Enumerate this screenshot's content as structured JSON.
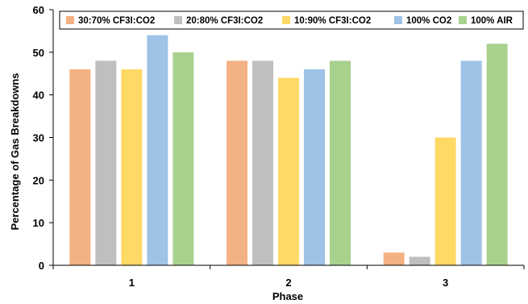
{
  "chart_data": {
    "type": "bar",
    "xlabel": "Phase",
    "ylabel": "Percentage of Gas Breakdowns",
    "categories": [
      "1",
      "2",
      "3"
    ],
    "ylim": [
      0,
      60
    ],
    "yticks": [
      0,
      10,
      20,
      30,
      40,
      50,
      60
    ],
    "grid": false,
    "legend_position": "top",
    "series": [
      {
        "name": "30:70% CF3I:CO2",
        "color": "#f4b183",
        "values": [
          46,
          48,
          3
        ]
      },
      {
        "name": "20:80% CF3I:CO2",
        "color": "#bfbfbf",
        "values": [
          48,
          48,
          2
        ]
      },
      {
        "name": "10:90% CF3I:CO2",
        "color": "#ffd966",
        "values": [
          46,
          44,
          30
        ]
      },
      {
        "name": "100% CO2",
        "color": "#9dc3e6",
        "values": [
          54,
          46,
          48
        ]
      },
      {
        "name": "100% AIR",
        "color": "#a9d18e",
        "values": [
          50,
          48,
          52
        ]
      }
    ]
  }
}
